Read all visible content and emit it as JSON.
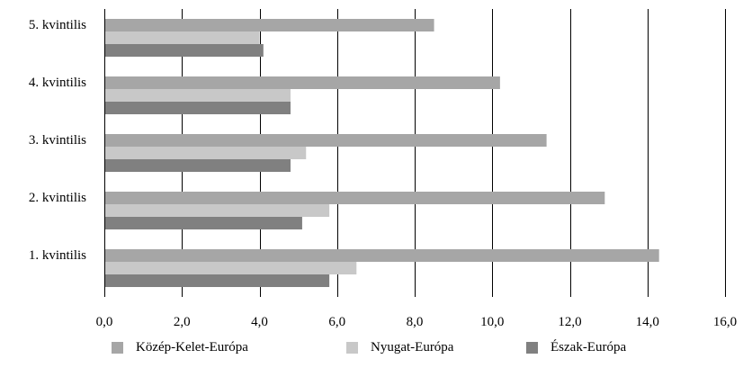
{
  "chart_data": {
    "type": "bar",
    "orientation": "horizontal",
    "categories": [
      "1. kvintilis",
      "2. kvintilis",
      "3. kvintilis",
      "4. kvintilis",
      "5. kvintilis"
    ],
    "series": [
      {
        "name": "Közép-Kelet-Európa",
        "color": "#a6a6a6",
        "values": [
          14.3,
          12.9,
          11.4,
          10.2,
          8.5
        ]
      },
      {
        "name": "Nyugat-Európa",
        "color": "#c8c8c8",
        "values": [
          6.5,
          5.8,
          5.2,
          4.8,
          4.0
        ]
      },
      {
        "name": "Észak-Európa",
        "color": "#808080",
        "values": [
          5.8,
          5.1,
          4.8,
          4.8,
          4.1
        ]
      }
    ],
    "xlim": [
      0,
      16
    ],
    "xticks": [
      0,
      2,
      4,
      6,
      8,
      10,
      12,
      14,
      16
    ],
    "xtick_labels": [
      "0,0",
      "2,0",
      "4,0",
      "6,0",
      "8,0",
      "10,0",
      "12,0",
      "14,0",
      "16,0"
    ],
    "grid": "vertical",
    "legend_position": "bottom",
    "title": "",
    "xlabel": "",
    "ylabel": ""
  }
}
